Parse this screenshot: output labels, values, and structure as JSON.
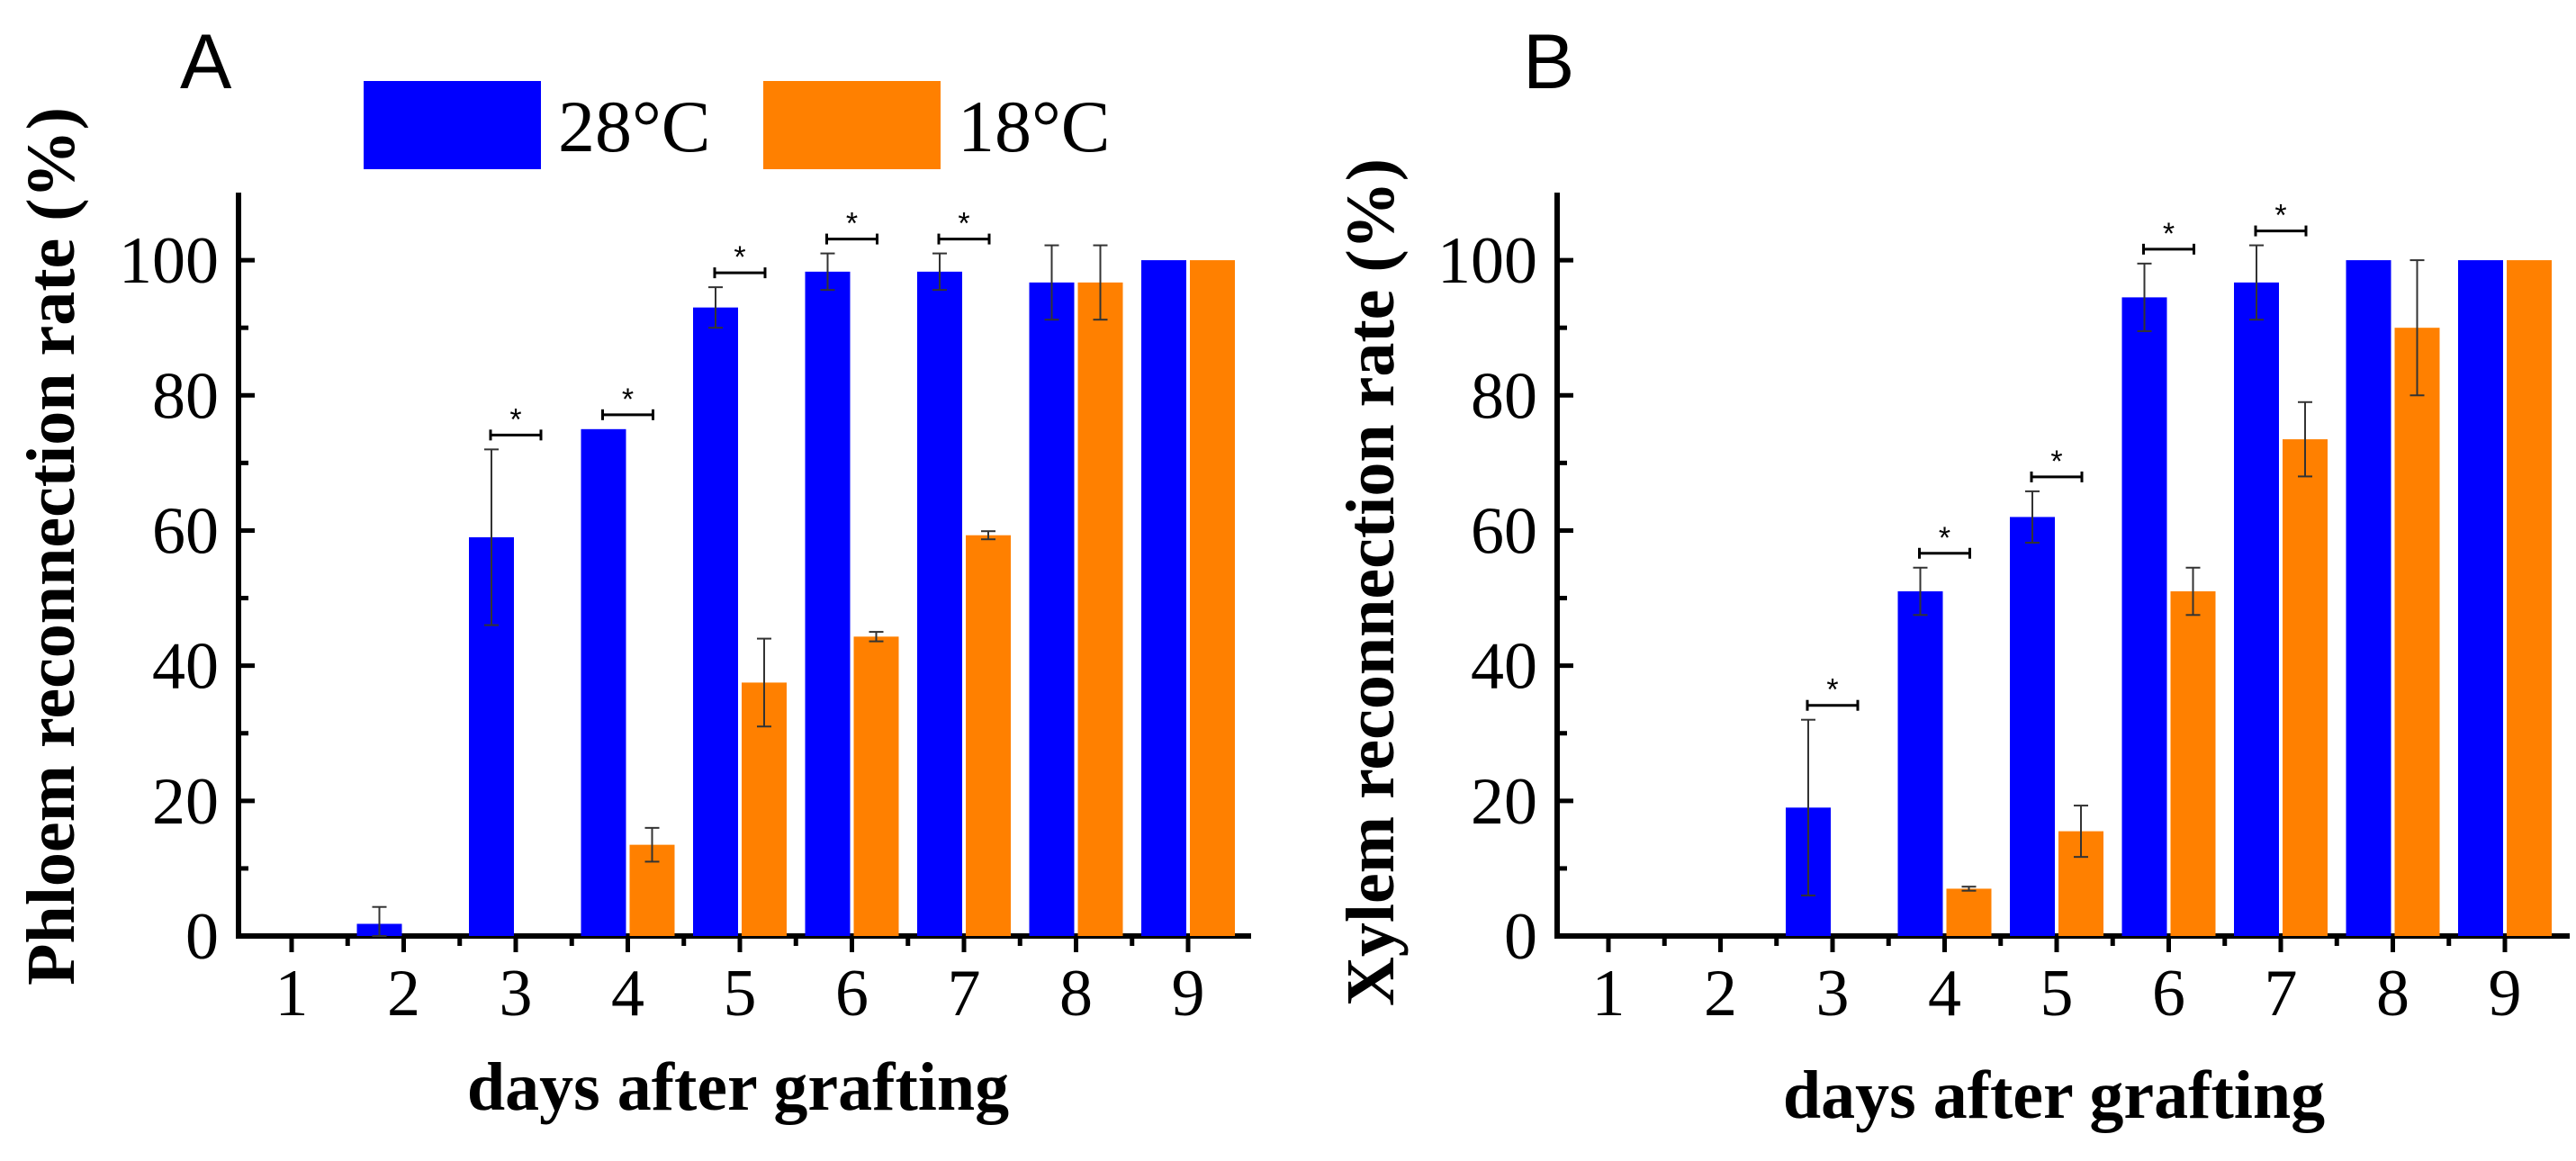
{
  "legend": [
    {
      "label": "28°C",
      "color": "#0000ff"
    },
    {
      "label": "18°C",
      "color": "#ff8000"
    }
  ],
  "chart_data": [
    {
      "type": "bar",
      "panel_label": "A",
      "xlabel": "days after grafting",
      "ylabel": "Phloem reconnection rate (%)",
      "ylim": [
        0,
        110
      ],
      "yticks": [
        "0",
        "20",
        "40",
        "60",
        "80",
        "100"
      ],
      "categories": [
        "1",
        "2",
        "3",
        "4",
        "5",
        "6",
        "7",
        "8",
        "9"
      ],
      "series": [
        {
          "name": "28°C",
          "color": "#0000ff",
          "values": [
            0,
            1.8,
            59,
            75,
            93,
            98.3,
            98.3,
            96.7,
            100
          ],
          "errors": [
            0,
            2.5,
            13,
            0,
            3,
            2.7,
            2.7,
            5.5,
            0
          ]
        },
        {
          "name": "18°C",
          "color": "#ff8000",
          "values": [
            0,
            0,
            0,
            13.5,
            37.5,
            44.3,
            59.3,
            96.7,
            100
          ],
          "errors": [
            0,
            0,
            0,
            2.5,
            6.5,
            0.7,
            0.6,
            5.5,
            0
          ]
        }
      ],
      "significance": [
        "",
        "",
        "*",
        "*",
        "*",
        "*",
        "*",
        "",
        ""
      ]
    },
    {
      "type": "bar",
      "panel_label": "B",
      "xlabel": "days after grafting",
      "ylabel": "Xylem reconnection rate (%)",
      "ylim": [
        0,
        110
      ],
      "yticks": [
        "0",
        "20",
        "40",
        "60",
        "80",
        "100"
      ],
      "categories": [
        "1",
        "2",
        "3",
        "4",
        "5",
        "6",
        "7",
        "8",
        "9"
      ],
      "series": [
        {
          "name": "28°C",
          "color": "#0000ff",
          "values": [
            0,
            0,
            19,
            51,
            62,
            94.5,
            96.7,
            100,
            100
          ],
          "errors": [
            0,
            0,
            13,
            3.5,
            3.8,
            5,
            5.5,
            0,
            0
          ]
        },
        {
          "name": "18°C",
          "color": "#ff8000",
          "values": [
            0,
            0,
            0,
            7,
            15.5,
            51,
            73.5,
            90,
            100
          ],
          "errors": [
            0,
            0,
            0,
            0.3,
            3.8,
            3.5,
            5.5,
            10,
            0
          ]
        }
      ],
      "significance": [
        "",
        "",
        "*",
        "*",
        "*",
        "*",
        "*",
        "",
        ""
      ]
    }
  ]
}
